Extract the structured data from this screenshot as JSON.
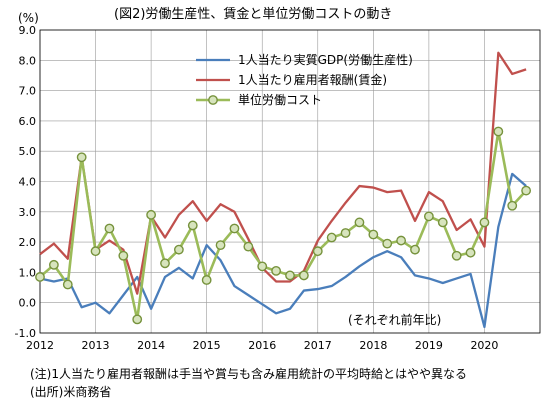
{
  "chart_data": {
    "type": "line",
    "title": "(図2)労働生産性、賃金と単位労働コストの動き",
    "unit_label": "(%)",
    "annotation": "(それぞれ前年比)",
    "notes": [
      "(注)1人当たり雇用者報酬は手当や賞与も含み雇用統計の平均時給とはやや異なる",
      "(出所)米商務省"
    ],
    "x_tick_labels": [
      "2012",
      "2013",
      "2014",
      "2015",
      "2016",
      "2017",
      "2018",
      "2019",
      "2020"
    ],
    "x_tick_values": [
      2012,
      2013,
      2014,
      2015,
      2016,
      2017,
      2018,
      2019,
      2020
    ],
    "xlim": [
      2012,
      2021
    ],
    "ylim": [
      -1.0,
      9.0
    ],
    "y_tick_labels": [
      "-1.0",
      "0.0",
      "1.0",
      "2.0",
      "3.0",
      "4.0",
      "5.0",
      "6.0",
      "7.0",
      "8.0",
      "9.0"
    ],
    "y_tick_values": [
      -1,
      0,
      1,
      2,
      3,
      4,
      5,
      6,
      7,
      8,
      9
    ],
    "legend_position": "top-center",
    "grid": true,
    "x": [
      2012.0,
      2012.25,
      2012.5,
      2012.75,
      2013.0,
      2013.25,
      2013.5,
      2013.75,
      2014.0,
      2014.25,
      2014.5,
      2014.75,
      2015.0,
      2015.25,
      2015.5,
      2015.75,
      2016.0,
      2016.25,
      2016.5,
      2016.75,
      2017.0,
      2017.25,
      2017.5,
      2017.75,
      2018.0,
      2018.25,
      2018.5,
      2018.75,
      2019.0,
      2019.25,
      2019.5,
      2019.75,
      2020.0,
      2020.25,
      2020.5,
      2020.75
    ],
    "series": [
      {
        "name": "1人当たり実質GDP(労働生産性)",
        "color": "#4a7ebb",
        "marker": false,
        "values": [
          0.8,
          0.7,
          0.8,
          -0.15,
          0.0,
          -0.35,
          0.25,
          0.85,
          -0.2,
          0.85,
          1.15,
          0.8,
          1.9,
          1.4,
          0.55,
          0.25,
          -0.05,
          -0.35,
          -0.2,
          0.4,
          0.45,
          0.55,
          0.85,
          1.2,
          1.5,
          1.7,
          1.5,
          0.9,
          0.8,
          0.65,
          0.8,
          0.95,
          -0.8,
          2.5,
          4.25,
          3.85
        ]
      },
      {
        "name": "1人当たり雇用者報酬(賃金)",
        "color": "#c0504d",
        "marker": false,
        "values": [
          1.6,
          1.95,
          1.45,
          4.8,
          1.75,
          2.05,
          1.75,
          0.3,
          2.85,
          2.15,
          2.9,
          3.35,
          2.7,
          3.25,
          3.0,
          2.1,
          1.15,
          0.7,
          0.7,
          1.05,
          2.05,
          2.7,
          3.3,
          3.85,
          3.8,
          3.65,
          3.7,
          2.7,
          3.65,
          3.35,
          2.4,
          2.75,
          1.85,
          8.25,
          7.55,
          7.7
        ]
      },
      {
        "name": "単位労働コスト",
        "color": "#9bbb59",
        "marker": true,
        "values": [
          0.85,
          1.25,
          0.6,
          4.8,
          1.7,
          2.45,
          1.55,
          -0.55,
          2.9,
          1.3,
          1.75,
          2.55,
          0.75,
          1.9,
          2.45,
          1.85,
          1.2,
          1.05,
          0.9,
          0.9,
          1.7,
          2.15,
          2.3,
          2.65,
          2.25,
          1.95,
          2.05,
          1.75,
          2.85,
          2.65,
          1.55,
          1.65,
          2.65,
          5.65,
          3.2,
          3.7
        ]
      }
    ]
  }
}
